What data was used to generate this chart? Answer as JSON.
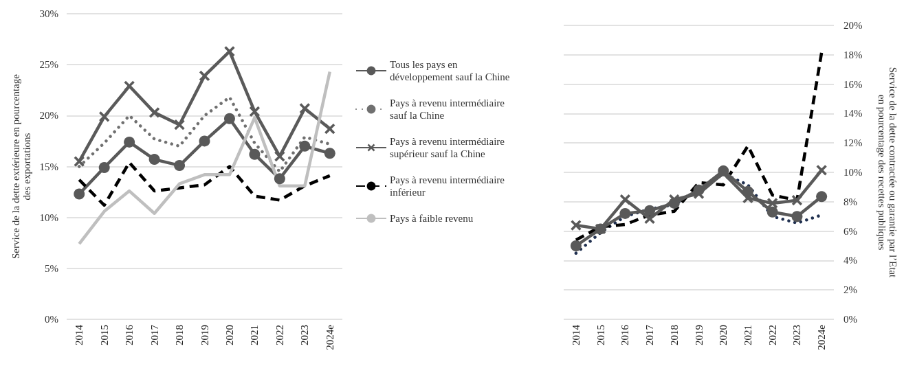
{
  "chart_data": [
    {
      "type": "line",
      "ylabel": "Service de la dette extérieure en pourcentage des exportations",
      "categories": [
        "2014",
        "2015",
        "2016",
        "2017",
        "2018",
        "2019",
        "2020",
        "2021",
        "2022",
        "2023",
        "2024e"
      ],
      "ylim": [
        0,
        30
      ],
      "yticks": [
        {
          "value": 0,
          "label": "0%"
        },
        {
          "value": 5,
          "label": "5%"
        },
        {
          "value": 10,
          "label": "10%"
        },
        {
          "value": 15,
          "label": "15%"
        },
        {
          "value": 20,
          "label": "20%"
        },
        {
          "value": 25,
          "label": "25%"
        },
        {
          "value": 30,
          "label": "30%"
        }
      ],
      "grid": "y",
      "legend": "right",
      "series": [
        {
          "name": "Tous les pays en développement sauf la Chine",
          "color": "#595959",
          "marker": "circle",
          "line_style": "solid",
          "values": [
            12.3,
            14.9,
            17.4,
            15.7,
            15.1,
            17.5,
            19.7,
            16.2,
            13.8,
            17.0,
            16.3
          ]
        },
        {
          "name": "Pays à revenu intermédiaire sauf la Chine",
          "color": "#707070",
          "marker": "none",
          "line_style": "dotted",
          "values": [
            15.0,
            17.3,
            20.0,
            17.7,
            17.0,
            20.0,
            21.8,
            17.3,
            14.5,
            17.9,
            17.2
          ]
        },
        {
          "name": "Pays à revenu intermédiaire supérieur sauf la Chine",
          "color": "#5a5a5a",
          "marker": "cross",
          "line_style": "solid",
          "values": [
            15.5,
            19.9,
            22.9,
            20.3,
            19.1,
            23.9,
            26.3,
            20.4,
            16.0,
            20.7,
            18.7
          ]
        },
        {
          "name": "Pays à revenu intermédiaire inférieur",
          "color": "#000000",
          "marker": "none",
          "line_style": "dashed",
          "values": [
            13.7,
            11.2,
            15.4,
            12.6,
            12.9,
            13.2,
            15.0,
            12.1,
            11.7,
            13.1,
            14.1
          ]
        },
        {
          "name": "Pays à faible revenu",
          "color": "#bfbfbf",
          "marker": "none",
          "line_style": "solid",
          "values": [
            7.4,
            10.6,
            12.6,
            10.4,
            13.3,
            14.2,
            14.2,
            19.8,
            13.1,
            13.1,
            24.3
          ]
        }
      ]
    },
    {
      "type": "line",
      "y2label": "Service de la dette contractée ou garantie par l’Etat en pourcentage des recettes publiques",
      "categories": [
        "2014",
        "2015",
        "2016",
        "2017",
        "2018",
        "2019",
        "2020",
        "2021",
        "2022",
        "2023",
        "2024e"
      ],
      "y2lim": [
        0,
        20
      ],
      "y2ticks": [
        {
          "value": 0,
          "label": "0%"
        },
        {
          "value": 2,
          "label": "2%"
        },
        {
          "value": 4,
          "label": "4%"
        },
        {
          "value": 6,
          "label": "6%"
        },
        {
          "value": 8,
          "label": "8%"
        },
        {
          "value": 10,
          "label": "10%"
        },
        {
          "value": 12,
          "label": "12%"
        },
        {
          "value": 14,
          "label": "14%"
        },
        {
          "value": 16,
          "label": "16%"
        },
        {
          "value": 18,
          "label": "18%"
        },
        {
          "value": 20,
          "label": "20%"
        }
      ],
      "grid": "y",
      "series": [
        {
          "color": "#203050",
          "marker": "none",
          "line_style": "dotted",
          "axis": "y2",
          "values": [
            4.5,
            5.9,
            7.0,
            7.5,
            7.8,
            8.85,
            9.9,
            9.15,
            7.0,
            6.55,
            7.1
          ]
        },
        {
          "color": "#000000",
          "marker": "none",
          "line_style": "dashed",
          "axis": "y2",
          "values": [
            5.4,
            6.3,
            6.45,
            7.1,
            7.35,
            9.3,
            9.15,
            11.8,
            8.45,
            8.1,
            18.15
          ]
        },
        {
          "color": "#5a5a5a",
          "marker": "cross",
          "line_style": "solid",
          "axis": "y2",
          "values": [
            6.4,
            6.15,
            8.15,
            6.85,
            8.15,
            8.55,
            9.95,
            8.25,
            7.9,
            8.1,
            10.15
          ]
        },
        {
          "color": "#595959",
          "marker": "circle",
          "line_style": "solid",
          "axis": "y2",
          "values": [
            5.0,
            6.15,
            7.2,
            7.4,
            7.9,
            8.8,
            10.1,
            8.7,
            7.3,
            7.0,
            8.35
          ]
        }
      ]
    }
  ]
}
